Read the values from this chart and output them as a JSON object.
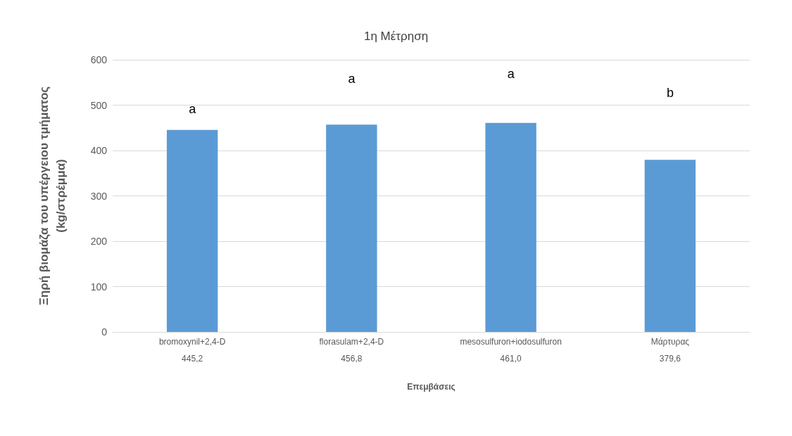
{
  "chart_data": {
    "type": "bar",
    "title": "1η Μέτρηση",
    "xlabel": "Επεμβάσεις",
    "ylabel": "Ξηρή βιομάζα του υπέργειου τμήματος\n(kg/στρέμμα)",
    "categories": [
      "bromoxynil+2,4-D",
      "florasulam+2,4-D",
      "mesosulfuron+iodosulfuron",
      "Μάρτυρας"
    ],
    "values": [
      445.2,
      456.8,
      461.0,
      379.6
    ],
    "color": "#5b9bd5",
    "value_labels": [
      "445,2",
      "456,8",
      "461,0",
      "379,6"
    ],
    "ylim": [
      0,
      600
    ],
    "yticks": [
      0,
      100,
      200,
      300,
      400,
      500,
      600
    ],
    "grid": "y",
    "annotations": [
      "a",
      "a",
      "a",
      "b"
    ]
  }
}
